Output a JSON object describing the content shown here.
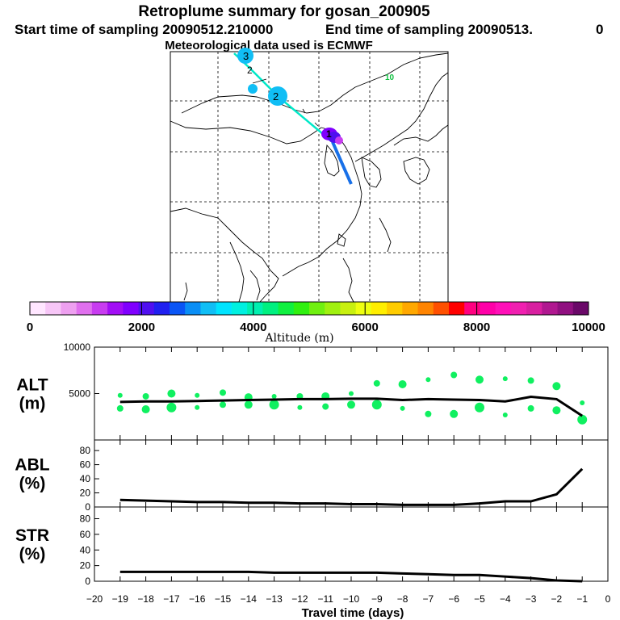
{
  "header": {
    "title": "Retroplume summary for gosan_200905",
    "start": "Start time of sampling 20090512.210000",
    "end": "End time of sampling 20090513.",
    "end_tail": "0",
    "met": "Meteorological data used is ECMWF"
  },
  "colorbar": {
    "label": "Altitude (m)",
    "ticks": [
      "0",
      "2000",
      "4000",
      "6000",
      "8000",
      "10000"
    ],
    "colors": [
      "#ffe6ff",
      "#f7c6f7",
      "#eea0f0",
      "#e070ee",
      "#c83cf0",
      "#a20ef5",
      "#8000ff",
      "#5010f0",
      "#2020f0",
      "#0a55f5",
      "#0a8ef5",
      "#10bef5",
      "#00e4ff",
      "#00f0e0",
      "#00f0b0",
      "#00f080",
      "#10f040",
      "#30f010",
      "#70f010",
      "#a0f010",
      "#c8f010",
      "#eeff10",
      "#ffee00",
      "#ffcc00",
      "#ffa800",
      "#ff8400",
      "#ff5000",
      "#ff0000",
      "#ff0080",
      "#ff00a8",
      "#ff10b8",
      "#f020b0",
      "#d820a0",
      "#b01890",
      "#901080",
      "#6a0868"
    ]
  },
  "map": {
    "numbers": [
      "3",
      "2",
      "2",
      "1",
      "10"
    ]
  },
  "chart_data": [
    {
      "type": "line",
      "panel": "ALT",
      "ylabel": [
        "ALT",
        "(m)"
      ],
      "ylim": [
        0,
        10000
      ],
      "yticks": [
        "10000",
        "5000"
      ],
      "x": [
        -19,
        -18,
        -17,
        -16,
        -15,
        -14,
        -13,
        -12,
        -11,
        -10,
        -9,
        -8,
        -7,
        -6,
        -5,
        -4,
        -3,
        -2,
        -1
      ],
      "values": [
        4100,
        4150,
        4150,
        4200,
        4250,
        4300,
        4350,
        4400,
        4400,
        4450,
        4450,
        4300,
        4400,
        4350,
        4300,
        4150,
        4650,
        4400,
        2600
      ],
      "dots_above": [
        4800,
        4700,
        5000,
        4800,
        5100,
        4600,
        4700,
        4700,
        4700,
        5000,
        6100,
        6000,
        6500,
        7000,
        6500,
        6600,
        6400,
        5800,
        4000
      ],
      "dots_below": [
        3400,
        3300,
        3500,
        3500,
        3800,
        3800,
        3800,
        3500,
        3600,
        3800,
        3800,
        3400,
        2800,
        2800,
        3500,
        2700,
        3400,
        3200,
        2200
      ]
    },
    {
      "type": "line",
      "panel": "ABL",
      "ylabel": [
        "ABL",
        "(%)"
      ],
      "ylim": [
        0,
        95
      ],
      "yticks": [
        "80",
        "60",
        "40",
        "20",
        "0"
      ],
      "x": [
        -19,
        -18,
        -17,
        -16,
        -15,
        -14,
        -13,
        -12,
        -11,
        -10,
        -9,
        -8,
        -7,
        -6,
        -5,
        -4,
        -3,
        -2,
        -1
      ],
      "values": [
        10,
        9,
        8,
        7,
        7,
        6,
        6,
        5,
        5,
        4,
        4,
        3,
        3,
        3,
        5,
        8,
        8,
        18,
        54
      ]
    },
    {
      "type": "line",
      "panel": "STR",
      "ylabel": [
        "STR",
        "(%)"
      ],
      "ylim": [
        0,
        95
      ],
      "yticks": [
        "80",
        "60",
        "40",
        "20",
        "0"
      ],
      "x": [
        -19,
        -18,
        -17,
        -16,
        -15,
        -14,
        -13,
        -12,
        -11,
        -10,
        -9,
        -8,
        -7,
        -6,
        -5,
        -4,
        -3,
        -2,
        -1
      ],
      "values": [
        12,
        12,
        12,
        12,
        12,
        12,
        11,
        11,
        11,
        11,
        11,
        10,
        9,
        8,
        8,
        6,
        4,
        1,
        0
      ],
      "xlabel": "Travel time (days)",
      "xticks": [
        "−20",
        "−19",
        "−18",
        "−17",
        "−16",
        "−15",
        "−14",
        "−13",
        "−12",
        "−11",
        "−10",
        "−9",
        "−8",
        "−7",
        "−6",
        "−5",
        "−4",
        "−3",
        "−2",
        "−1",
        "0"
      ]
    }
  ]
}
